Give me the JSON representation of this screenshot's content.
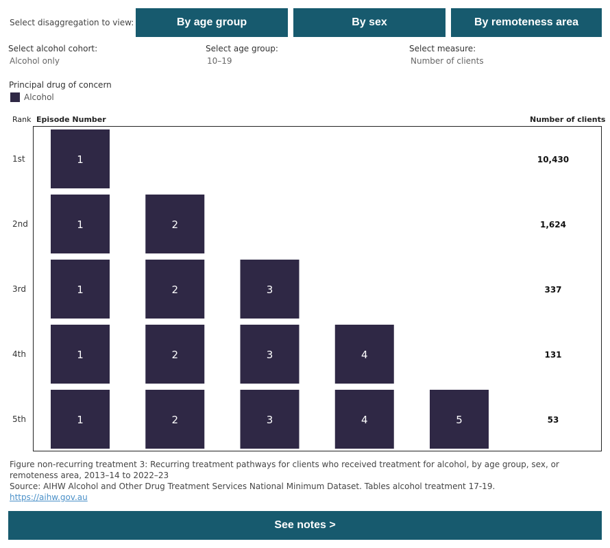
{
  "header": {
    "select_label": "Select disaggregation to view:",
    "tabs": [
      {
        "label": "By age group"
      },
      {
        "label": "By sex"
      },
      {
        "label": "By remoteness area"
      }
    ]
  },
  "filters": {
    "cohort": {
      "label": "Select alcohol cohort:",
      "value": "Alcohol only"
    },
    "age_group": {
      "label": "Select age group:",
      "value": "10–19"
    },
    "measure": {
      "label": "Select measure:",
      "value": "Number of clients"
    }
  },
  "legend": {
    "title": "Principal drug of concern",
    "items": [
      {
        "label": "Alcohol",
        "color": "#2f2845"
      }
    ]
  },
  "column_headers": {
    "rank": "Rank",
    "episode": "Episode Number",
    "clients": "Number of clients"
  },
  "chart_data": {
    "type": "table",
    "row_label_header": "Rank",
    "rows": [
      {
        "rank": "1st",
        "episodes": [
          "1"
        ],
        "clients": "10,430",
        "clients_value": 10430
      },
      {
        "rank": "2nd",
        "episodes": [
          "1",
          "2"
        ],
        "clients": "1,624",
        "clients_value": 1624
      },
      {
        "rank": "3rd",
        "episodes": [
          "1",
          "2",
          "3"
        ],
        "clients": "337",
        "clients_value": 337
      },
      {
        "rank": "4th",
        "episodes": [
          "1",
          "2",
          "3",
          "4"
        ],
        "clients": "131",
        "clients_value": 131
      },
      {
        "rank": "5th",
        "episodes": [
          "1",
          "2",
          "3",
          "4",
          "5"
        ],
        "clients": "53",
        "clients_value": 53
      }
    ],
    "mark_color": "#2f2845"
  },
  "caption": {
    "figure_text": "Figure non-recurring treatment 3: Recurring treatment pathways for clients who received treatment for alcohol, by  age group, sex, or remoteness area, 2013–14 to 2022–23",
    "source_text": "Source: AIHW Alcohol and Other Drug Treatment Services National Minimum Dataset. Tables alcohol treatment 17-19.",
    "link_text": "https://aihw.gov.au"
  },
  "notes_button": {
    "label": "See notes >"
  }
}
